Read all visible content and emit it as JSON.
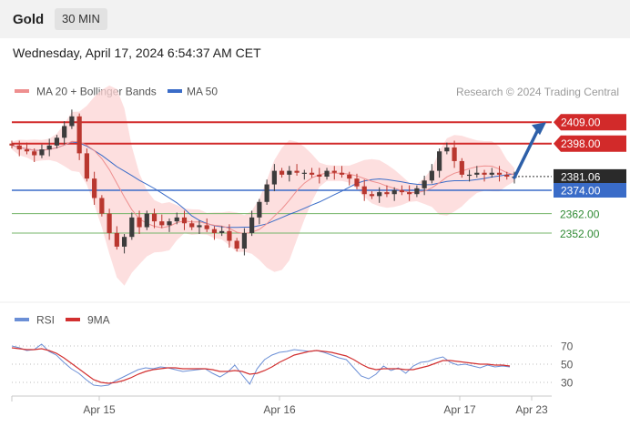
{
  "header": {
    "symbol": "Gold",
    "interval": "30 MIN",
    "datetime": "Wednesday, April 17, 2024 6:54:37 AM CET"
  },
  "colors": {
    "up_candle": "#3c3c3c",
    "down_candle": "#b9372f",
    "bollinger_fill": "#fcd4d4",
    "ma20": "#ee8f8f",
    "ma50": "#3a6cc8",
    "resistance": "#d22a2a",
    "support": "#74b46a",
    "rsi": "#6b8fd6",
    "rsi_ma": "#d23030",
    "current_price_bg": "#2a2a2a",
    "ma50_label_bg": "#3a6cc8",
    "arrow": "#2d5fa8"
  },
  "chart_data": [
    {
      "type": "candlestick",
      "legend": [
        {
          "name": "MA 20 + Bollinger Bands",
          "color": "#ee8f8f"
        },
        {
          "name": "MA 50",
          "color": "#3a6cc8"
        }
      ],
      "legend_position": "top-left",
      "source_note": "Research © 2024 Trading Central",
      "x_ticks": [
        "Apr 15",
        "Apr 16",
        "Apr 17",
        "Apr 23"
      ],
      "ylim": [
        2322,
        2418
      ],
      "levels": [
        {
          "label": "2409.00",
          "value": 2409.0,
          "kind": "resistance"
        },
        {
          "label": "2398.00",
          "value": 2398.0,
          "kind": "resistance"
        },
        {
          "label": "2381.06",
          "value": 2381.06,
          "kind": "current"
        },
        {
          "label": "2374.00",
          "value": 2374.0,
          "kind": "ma50"
        },
        {
          "label": "2362.00",
          "value": 2362.0,
          "kind": "support"
        },
        {
          "label": "2352.00",
          "value": 2352.0,
          "kind": "support"
        }
      ],
      "close_series": [
        2397,
        2395,
        2394,
        2392,
        2395,
        2397,
        2401,
        2407,
        2412,
        2393,
        2380,
        2370,
        2362,
        2352,
        2345,
        2350,
        2360,
        2355,
        2362,
        2358,
        2356,
        2358,
        2360,
        2357,
        2355,
        2356,
        2354,
        2352,
        2353,
        2348,
        2344,
        2352,
        2360,
        2368,
        2377,
        2384,
        2382,
        2384,
        2383,
        2383,
        2382,
        2381,
        2384,
        2383,
        2382,
        2380,
        2376,
        2372,
        2371,
        2373,
        2372,
        2374,
        2373,
        2372,
        2375,
        2379,
        2384,
        2394,
        2396,
        2389,
        2382,
        2382,
        2383,
        2382,
        2383,
        2382,
        2381,
        2381
      ],
      "arrow_target": 2409.0
    },
    {
      "type": "line",
      "legend": [
        {
          "name": "RSI",
          "color": "#6b8fd6"
        },
        {
          "name": "9MA",
          "color": "#d23030"
        }
      ],
      "ylim": [
        20,
        80
      ],
      "y_ticks": [
        70,
        50,
        30
      ],
      "grid": "dotted",
      "rsi_series": [
        70,
        68,
        65,
        66,
        72,
        64,
        60,
        52,
        45,
        40,
        33,
        27,
        26,
        27,
        32,
        36,
        40,
        44,
        46,
        45,
        47,
        46,
        44,
        42,
        43,
        44,
        45,
        40,
        36,
        41,
        49,
        38,
        28,
        45,
        55,
        60,
        63,
        64,
        66,
        65,
        64,
        65,
        63,
        60,
        57,
        55,
        46,
        37,
        34,
        39,
        48,
        43,
        46,
        40,
        48,
        52,
        53,
        56,
        58,
        52,
        49,
        50,
        48,
        46,
        49,
        47,
        48,
        47
      ],
      "rsi_ma_series": [
        68,
        67,
        66,
        66,
        67,
        65,
        62,
        57,
        51,
        45,
        39,
        33,
        30,
        29,
        30,
        32,
        35,
        39,
        42,
        44,
        45,
        46,
        46,
        45,
        45,
        45,
        45,
        44,
        42,
        42,
        43,
        42,
        39,
        40,
        43,
        47,
        52,
        56,
        60,
        62,
        64,
        65,
        64,
        63,
        61,
        59,
        55,
        50,
        46,
        44,
        45,
        45,
        45,
        44,
        44,
        46,
        48,
        51,
        54,
        54,
        53,
        52,
        51,
        50,
        50,
        49,
        49,
        48
      ]
    }
  ]
}
